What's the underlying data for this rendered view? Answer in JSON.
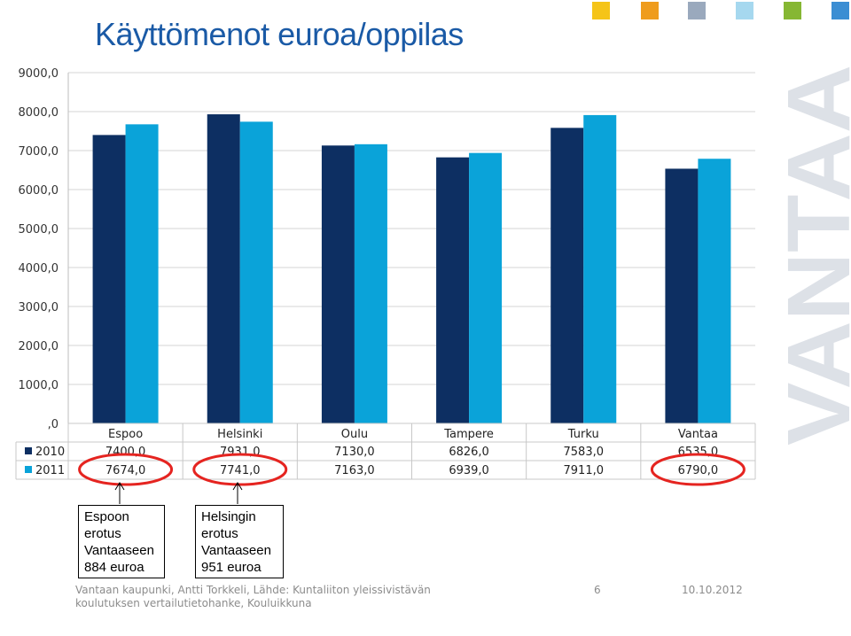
{
  "title": "Käyttömenot euroa/oppilas",
  "colors": {
    "series_2010": "#0d2f62",
    "series_2011": "#0aa3d9",
    "highlight_ellipse": "#e52420",
    "title": "#1a5aa6",
    "watermark": "#dde1e7"
  },
  "top_squares": [
    "#f5c418",
    "#ef9c1d",
    "#9aa9bd",
    "#a6d8ef",
    "#86b733",
    "#3b8ed3"
  ],
  "watermark_text": "VANTAA",
  "chart_data": {
    "type": "bar",
    "title": "Käyttömenot euroa/oppilas",
    "categories": [
      "Espoo",
      "Helsinki",
      "Oulu",
      "Tampere",
      "Turku",
      "Vantaa"
    ],
    "series": [
      {
        "name": "2010",
        "values": [
          7400.0,
          7931.0,
          7130.0,
          6826.0,
          7583.0,
          6535.0
        ],
        "labels": [
          "7400,0",
          "7931,0",
          "7130,0",
          "6826,0",
          "7583,0",
          "6535,0"
        ]
      },
      {
        "name": "2011",
        "values": [
          7674.0,
          7741.0,
          7163.0,
          6939.0,
          7911.0,
          6790.0
        ],
        "labels": [
          "7674,0",
          "7741,0",
          "7163,0",
          "6939,0",
          "7911,0",
          "6790,0"
        ]
      }
    ],
    "ylim": [
      0,
      9000
    ],
    "ytick_values": [
      0,
      1000,
      2000,
      3000,
      4000,
      5000,
      6000,
      7000,
      8000,
      9000
    ],
    "ytick_labels": [
      ",0",
      "1000,0",
      "2000,0",
      "3000,0",
      "4000,0",
      "5000,0",
      "6000,0",
      "7000,0",
      "8000,0",
      "9000,0"
    ],
    "grid": true,
    "legend": "data-table",
    "highlighted": [
      {
        "series": "2011",
        "category": "Espoo"
      },
      {
        "series": "2011",
        "category": "Helsinki"
      },
      {
        "series": "2011",
        "category": "Vantaa"
      }
    ]
  },
  "callouts": [
    {
      "lines": [
        "Espoon",
        "erotus",
        "Vantaaseen",
        "884 euroa"
      ]
    },
    {
      "lines": [
        "Helsingin",
        "erotus",
        "Vantaaseen",
        "951 euroa"
      ]
    }
  ],
  "footer": {
    "source_line1": "Vantaan kaupunki, Antti Torkkeli, Lähde: Kuntaliiton yleissivistävän",
    "source_line2": "koulutuksen vertailutietohanke, Kouluikkuna",
    "page_number": "6",
    "date": "10.10.2012"
  }
}
